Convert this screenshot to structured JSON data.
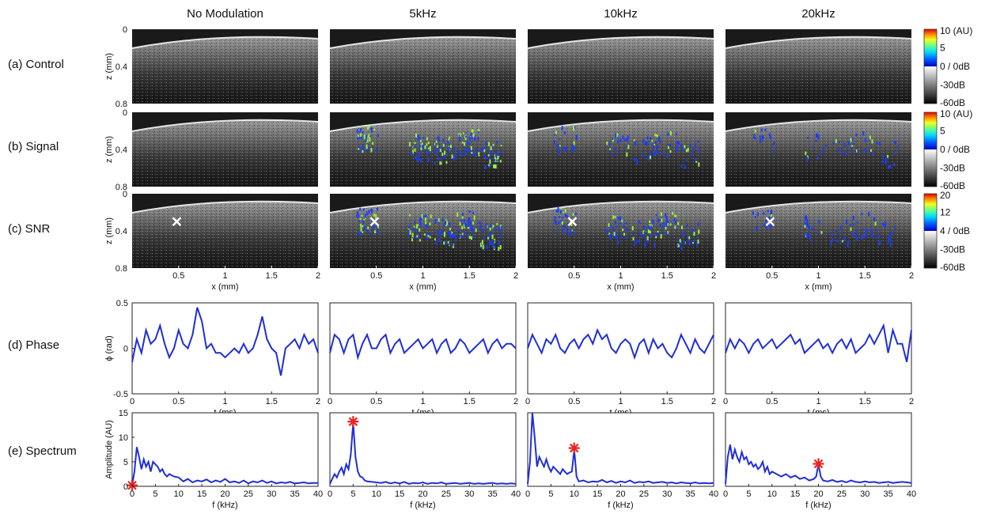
{
  "column_titles": [
    "No Modulation",
    "5kHz",
    "10kHz",
    "20kHz"
  ],
  "row_labels": [
    "(a) Control",
    "(b) Signal",
    "(c) SNR",
    "(d) Phase",
    "(e) Spectrum"
  ],
  "colorbars": [
    {
      "labels": [
        "10 (AU)",
        "5",
        "0 / 0dB",
        "-30dB",
        "-60dB"
      ]
    },
    {
      "labels": [
        "10 (AU)",
        "5",
        "0 / 0dB",
        "-30dB",
        "-60dB"
      ]
    },
    {
      "labels": [
        "20",
        "12",
        "4 / 0dB",
        "-30dB",
        "-60dB"
      ]
    }
  ],
  "colors": {
    "trace": "#1f2fd6",
    "marker_star": "#e8251f",
    "marker_cross": "#ffffff",
    "overlay_low": "#1a3cff",
    "overlay_high": "#9af03a"
  },
  "chart_data": [
    {
      "type": "heatmap",
      "rows": [
        "(a) Control",
        "(b) Signal",
        "(c) SNR"
      ],
      "columns": [
        "No Modulation",
        "5kHz",
        "10kHz",
        "20kHz"
      ],
      "ylabel": "z (mm)",
      "yticks": [
        "0",
        "0.4",
        "0.8"
      ],
      "ylim": [
        0,
        0.8
      ],
      "xlabel": "x (mm)",
      "xticks": [
        "0.5",
        "1",
        "1.5",
        "2"
      ],
      "xlim": [
        0,
        2
      ],
      "overlay_strength": [
        [
          0,
          0,
          0,
          0
        ],
        [
          0,
          1.0,
          0.55,
          0.35
        ],
        [
          0,
          1.0,
          0.8,
          0.45
        ]
      ],
      "cross_marker": {
        "x": 0.48,
        "z": 0.3
      }
    },
    {
      "type": "line",
      "row": "(d) Phase",
      "xlabel": "t (ms)",
      "ylabel": "ϕ (rad)",
      "xlim": [
        0,
        2
      ],
      "ylim": [
        -0.5,
        0.5
      ],
      "xticks": [
        "0",
        "0.5",
        "1",
        "1.5",
        "2"
      ],
      "yticks": [
        "0.5",
        "0",
        "-0.5"
      ],
      "series": [
        {
          "column": "No Modulation",
          "x": [
            0,
            0.05,
            0.1,
            0.15,
            0.2,
            0.25,
            0.3,
            0.35,
            0.4,
            0.45,
            0.5,
            0.55,
            0.6,
            0.65,
            0.7,
            0.75,
            0.8,
            0.85,
            0.9,
            0.95,
            1.0,
            1.05,
            1.1,
            1.15,
            1.2,
            1.25,
            1.3,
            1.35,
            1.4,
            1.45,
            1.5,
            1.55,
            1.6,
            1.65,
            1.7,
            1.75,
            1.8,
            1.85,
            1.9,
            1.95,
            2.0
          ],
          "y": [
            -0.15,
            0.1,
            -0.05,
            0.2,
            0.05,
            0.1,
            0.25,
            0.05,
            -0.1,
            0.0,
            0.2,
            0.05,
            0.0,
            0.15,
            0.45,
            0.3,
            0.0,
            0.05,
            -0.05,
            -0.05,
            -0.1,
            -0.05,
            0.0,
            -0.05,
            0.05,
            -0.05,
            0.0,
            0.15,
            0.35,
            0.1,
            0.0,
            -0.05,
            -0.3,
            0.0,
            0.05,
            0.1,
            0.0,
            0.15,
            0.05,
            0.1,
            -0.05
          ]
        },
        {
          "column": "5kHz",
          "x": [
            0,
            0.05,
            0.1,
            0.15,
            0.2,
            0.25,
            0.3,
            0.35,
            0.4,
            0.45,
            0.5,
            0.55,
            0.6,
            0.65,
            0.7,
            0.75,
            0.8,
            0.85,
            0.9,
            0.95,
            1.0,
            1.05,
            1.1,
            1.15,
            1.2,
            1.25,
            1.3,
            1.35,
            1.4,
            1.45,
            1.5,
            1.55,
            1.6,
            1.65,
            1.7,
            1.75,
            1.8,
            1.85,
            1.9,
            1.95,
            2.0
          ],
          "y": [
            -0.05,
            0.15,
            0.1,
            -0.05,
            0.1,
            0.15,
            -0.1,
            0.05,
            0.15,
            0.0,
            0.0,
            0.1,
            0.15,
            -0.05,
            0.05,
            0.1,
            -0.05,
            0.0,
            0.05,
            0.1,
            0.0,
            0.05,
            0.1,
            -0.05,
            0.05,
            0.1,
            -0.05,
            0.0,
            0.1,
            0.05,
            -0.05,
            0.0,
            0.05,
            0.1,
            -0.05,
            0.05,
            0.1,
            0.0,
            0.05,
            0.05,
            0.0
          ]
        },
        {
          "column": "10kHz",
          "x": [
            0,
            0.05,
            0.1,
            0.15,
            0.2,
            0.25,
            0.3,
            0.35,
            0.4,
            0.45,
            0.5,
            0.55,
            0.6,
            0.65,
            0.7,
            0.75,
            0.8,
            0.85,
            0.9,
            0.95,
            1.0,
            1.05,
            1.1,
            1.15,
            1.2,
            1.25,
            1.3,
            1.35,
            1.4,
            1.45,
            1.5,
            1.55,
            1.6,
            1.65,
            1.7,
            1.75,
            1.8,
            1.85,
            1.9,
            1.95,
            2.0
          ],
          "y": [
            0.0,
            0.15,
            0.05,
            -0.05,
            0.1,
            0.05,
            0.15,
            0.0,
            -0.05,
            0.05,
            0.1,
            0.0,
            0.1,
            0.15,
            0.05,
            0.2,
            0.1,
            0.15,
            0.0,
            -0.05,
            0.05,
            0.1,
            0.05,
            -0.1,
            0.05,
            0.1,
            -0.05,
            0.1,
            0.0,
            0.05,
            -0.05,
            -0.1,
            0.0,
            0.15,
            0.05,
            -0.05,
            0.1,
            0.0,
            -0.05,
            0.05,
            0.15
          ]
        },
        {
          "column": "20kHz",
          "x": [
            0,
            0.05,
            0.1,
            0.15,
            0.2,
            0.25,
            0.3,
            0.35,
            0.4,
            0.45,
            0.5,
            0.55,
            0.6,
            0.65,
            0.7,
            0.75,
            0.8,
            0.85,
            0.9,
            0.95,
            1.0,
            1.05,
            1.1,
            1.15,
            1.2,
            1.25,
            1.3,
            1.35,
            1.4,
            1.45,
            1.5,
            1.55,
            1.6,
            1.65,
            1.7,
            1.75,
            1.8,
            1.85,
            1.9,
            1.95,
            2.0
          ],
          "y": [
            -0.05,
            0.1,
            0.0,
            0.1,
            0.05,
            -0.05,
            0.05,
            0.1,
            0.0,
            0.05,
            0.1,
            0.0,
            0.05,
            0.1,
            0.15,
            0.05,
            0.1,
            -0.05,
            0.0,
            0.05,
            0.1,
            0.0,
            0.05,
            -0.05,
            0.05,
            0.1,
            0.0,
            0.1,
            -0.05,
            0.0,
            0.05,
            0.15,
            0.05,
            0.15,
            0.25,
            -0.05,
            0.2,
            0.05,
            0.05,
            -0.15,
            0.2
          ]
        }
      ]
    },
    {
      "type": "line",
      "row": "(e) Spectrum",
      "xlabel": "f (kHz)",
      "ylabel": "Amplitude (AU)",
      "xlim": [
        0,
        40
      ],
      "ylim": [
        0,
        15
      ],
      "xticks": [
        "0",
        "5",
        "10",
        "15",
        "20",
        "25",
        "30",
        "35",
        "40"
      ],
      "yticks": [
        "15",
        "10",
        "5",
        "0"
      ],
      "series": [
        {
          "column": "No Modulation",
          "x": [
            0,
            0.5,
            1,
            1.5,
            2,
            2.5,
            3,
            3.5,
            4,
            4.5,
            5,
            5.5,
            6,
            6.5,
            7,
            7.5,
            8,
            9,
            10,
            11,
            12,
            13,
            14,
            15,
            16,
            17,
            18,
            19,
            20,
            21,
            22,
            23,
            24,
            25,
            26,
            27,
            28,
            29,
            30,
            31,
            32,
            33,
            34,
            35,
            36,
            37,
            38,
            39,
            40
          ],
          "y": [
            0.2,
            3.0,
            8.0,
            6.0,
            3.5,
            5.5,
            4.0,
            5.0,
            3.0,
            5.0,
            4.5,
            4.0,
            3.0,
            3.5,
            2.5,
            2.0,
            2.5,
            2.0,
            1.8,
            1.0,
            1.5,
            0.8,
            1.2,
            1.0,
            1.4,
            0.8,
            1.2,
            0.9,
            1.5,
            0.8,
            1.0,
            0.7,
            1.2,
            0.6,
            1.0,
            0.8,
            1.2,
            0.7,
            1.0,
            0.6,
            0.8,
            0.7,
            0.9,
            0.6,
            0.7,
            0.8,
            0.6,
            0.7,
            0.7
          ],
          "peak": {
            "x": 0,
            "y": 0.2
          }
        },
        {
          "column": "5kHz",
          "x": [
            0,
            0.5,
            1,
            1.5,
            2,
            2.5,
            3,
            3.5,
            4,
            4.5,
            5,
            5.5,
            6,
            6.5,
            7,
            7.5,
            8,
            9,
            10,
            11,
            12,
            13,
            14,
            15,
            16,
            17,
            18,
            19,
            20,
            21,
            22,
            23,
            24,
            25,
            26,
            27,
            28,
            29,
            30,
            31,
            32,
            33,
            34,
            35,
            36,
            37,
            38,
            39,
            40
          ],
          "y": [
            0.5,
            1.5,
            2.5,
            1.8,
            3.0,
            3.8,
            2.5,
            4.5,
            3.5,
            6.5,
            13.0,
            6.0,
            3.0,
            2.0,
            1.8,
            1.2,
            1.0,
            0.9,
            0.8,
            0.7,
            0.9,
            0.6,
            0.8,
            0.6,
            0.9,
            0.5,
            0.7,
            0.6,
            0.8,
            0.5,
            0.7,
            0.6,
            0.8,
            0.5,
            0.6,
            0.7,
            0.5,
            0.6,
            0.7,
            0.5,
            0.6,
            0.5,
            0.6,
            0.7,
            0.5,
            0.6,
            0.5,
            0.6,
            0.5
          ],
          "peak": {
            "x": 5,
            "y": 13.2
          }
        },
        {
          "column": "10kHz",
          "x": [
            0,
            0.5,
            1,
            1.5,
            2,
            2.5,
            3,
            3.5,
            4,
            4.5,
            5,
            5.5,
            6,
            6.5,
            7,
            7.5,
            8,
            8.5,
            9,
            9.5,
            10,
            10.5,
            11,
            12,
            13,
            14,
            15,
            16,
            17,
            18,
            19,
            20,
            21,
            22,
            23,
            24,
            25,
            26,
            27,
            28,
            29,
            30,
            31,
            32,
            33,
            34,
            35,
            36,
            37,
            38,
            39,
            40
          ],
          "y": [
            0.5,
            5.0,
            15.0,
            10.0,
            4.0,
            6.0,
            5.0,
            4.0,
            5.5,
            4.0,
            3.0,
            4.0,
            3.5,
            3.0,
            2.5,
            3.5,
            3.0,
            2.5,
            2.8,
            3.0,
            7.5,
            2.0,
            1.0,
            1.2,
            0.8,
            1.0,
            0.9,
            1.3,
            0.8,
            1.1,
            0.7,
            1.0,
            0.8,
            1.2,
            0.7,
            0.9,
            0.8,
            1.0,
            0.7,
            0.8,
            0.9,
            0.7,
            0.8,
            0.6,
            0.8,
            0.7,
            0.6,
            0.8,
            0.6,
            0.7,
            0.6,
            0.7
          ],
          "peak": {
            "x": 10,
            "y": 7.8
          }
        },
        {
          "column": "20kHz",
          "x": [
            0,
            0.5,
            1,
            1.5,
            2,
            2.5,
            3,
            3.5,
            4,
            4.5,
            5,
            5.5,
            6,
            6.5,
            7,
            7.5,
            8,
            8.5,
            9,
            9.5,
            10,
            11,
            12,
            13,
            14,
            15,
            16,
            17,
            18,
            19,
            19.5,
            20,
            20.5,
            21,
            22,
            23,
            24,
            25,
            26,
            27,
            28,
            29,
            30,
            31,
            32,
            33,
            34,
            35,
            36,
            37,
            38,
            39,
            40
          ],
          "y": [
            0.5,
            6.0,
            8.5,
            5.5,
            7.5,
            6.0,
            5.0,
            7.0,
            5.5,
            6.0,
            4.5,
            5.0,
            4.0,
            4.5,
            3.5,
            4.0,
            5.0,
            3.0,
            4.0,
            2.5,
            3.0,
            2.5,
            2.0,
            2.5,
            1.8,
            2.2,
            1.5,
            1.8,
            1.2,
            1.5,
            2.0,
            4.5,
            2.0,
            1.2,
            1.0,
            1.3,
            0.9,
            1.1,
            0.8,
            1.2,
            0.9,
            0.8,
            1.0,
            0.8,
            0.9,
            0.7,
            0.8,
            0.9,
            0.7,
            0.8,
            0.9,
            0.8,
            0.7
          ],
          "peak": {
            "x": 20,
            "y": 4.6
          }
        }
      ]
    }
  ]
}
